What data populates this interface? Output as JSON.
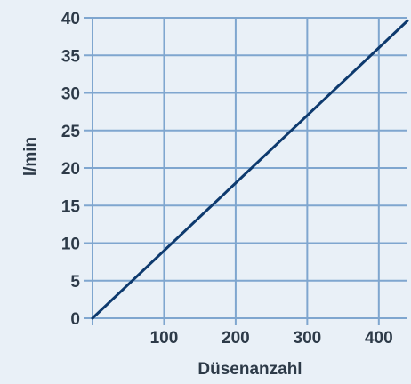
{
  "chart_data": {
    "type": "line",
    "title": "",
    "xlabel": "Düsenanzahl",
    "ylabel": "l/min",
    "xlim": [
      0,
      440
    ],
    "ylim": [
      0,
      40
    ],
    "x_ticks": [
      100,
      200,
      300,
      400
    ],
    "y_ticks": [
      0,
      5,
      10,
      15,
      20,
      25,
      30,
      35,
      40
    ],
    "x_tick_labels": [
      "100",
      "200",
      "300",
      "400"
    ],
    "y_tick_labels": [
      "0",
      "5",
      "10",
      "15",
      "20",
      "25",
      "30",
      "35",
      "40"
    ],
    "grid": true,
    "series": [
      {
        "x": [
          0,
          440
        ],
        "y": [
          0,
          39.6
        ]
      }
    ],
    "colors": {
      "background": "#e9f0f7",
      "grid": "#7fa6cf",
      "line": "#0e3a6e",
      "text": "#2d3a48"
    }
  }
}
